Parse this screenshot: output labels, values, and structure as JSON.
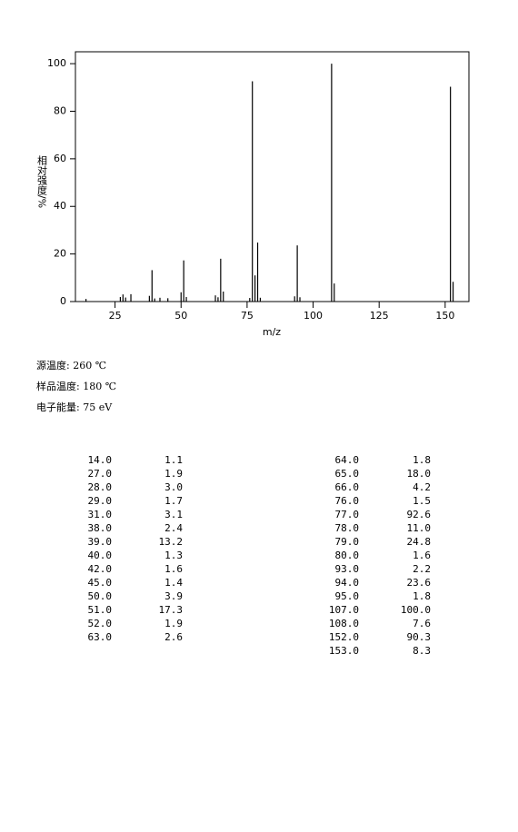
{
  "chart_data": {
    "type": "stem",
    "x_label": "m/z",
    "y_label": "相对强度/%",
    "x": [
      14,
      27,
      28,
      29,
      31,
      38,
      39,
      40,
      42,
      45,
      50,
      51,
      52,
      63,
      64,
      65,
      66,
      76,
      77,
      78,
      79,
      80,
      93,
      94,
      95,
      107,
      108,
      152,
      153
    ],
    "values": [
      1.1,
      1.9,
      3.0,
      1.7,
      3.1,
      2.4,
      13.2,
      1.3,
      1.6,
      1.4,
      3.9,
      17.3,
      1.9,
      2.6,
      1.8,
      18.0,
      4.2,
      1.5,
      92.6,
      11.0,
      24.8,
      1.6,
      2.2,
      23.6,
      1.8,
      100.0,
      7.6,
      90.3,
      8.3
    ],
    "color": "#000000",
    "xlim": [
      10,
      159
    ],
    "xticks": [
      25,
      50,
      75,
      100,
      125,
      150
    ],
    "ylim": [
      0,
      105
    ],
    "yticks": [
      0,
      20,
      40,
      60,
      80,
      100
    ]
  },
  "conditions": [
    "源温度: 260 ℃",
    "样品温度: 180 ℃",
    "电子能量: 75 eV"
  ],
  "table": {
    "left": [
      [
        "14.0",
        "1.1"
      ],
      [
        "27.0",
        "1.9"
      ],
      [
        "28.0",
        "3.0"
      ],
      [
        "29.0",
        "1.7"
      ],
      [
        "31.0",
        "3.1"
      ],
      [
        "38.0",
        "2.4"
      ],
      [
        "39.0",
        "13.2"
      ],
      [
        "40.0",
        "1.3"
      ],
      [
        "42.0",
        "1.6"
      ],
      [
        "45.0",
        "1.4"
      ],
      [
        "50.0",
        "3.9"
      ],
      [
        "51.0",
        "17.3"
      ],
      [
        "52.0",
        "1.9"
      ],
      [
        "63.0",
        "2.6"
      ]
    ],
    "right": [
      [
        "64.0",
        "1.8"
      ],
      [
        "65.0",
        "18.0"
      ],
      [
        "66.0",
        "4.2"
      ],
      [
        "76.0",
        "1.5"
      ],
      [
        "77.0",
        "92.6"
      ],
      [
        "78.0",
        "11.0"
      ],
      [
        "79.0",
        "24.8"
      ],
      [
        "80.0",
        "1.6"
      ],
      [
        "93.0",
        "2.2"
      ],
      [
        "94.0",
        "23.6"
      ],
      [
        "95.0",
        "1.8"
      ],
      [
        "107.0",
        "100.0"
      ],
      [
        "108.0",
        "7.6"
      ],
      [
        "152.0",
        "90.3"
      ],
      [
        "153.0",
        "8.3"
      ]
    ]
  }
}
